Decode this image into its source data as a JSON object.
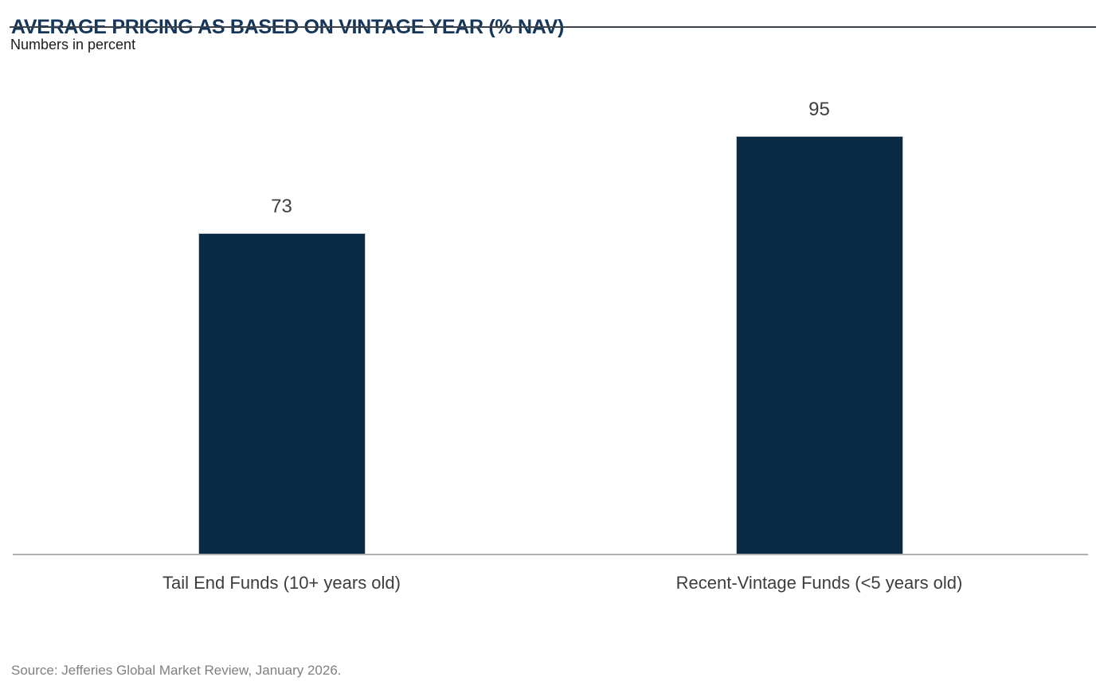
{
  "header": {
    "title": "AVERAGE PRICING AS BASED ON VINTAGE YEAR (% NAV)",
    "subtitle": "Numbers in percent"
  },
  "chart_data": {
    "type": "bar",
    "title": "AVERAGE PRICING AS BASED ON VINTAGE YEAR (% NAV)",
    "subtitle": "Numbers in percent",
    "categories": [
      "Tail End Funds (10+ years old)",
      "Recent-Vintage Funds (<5 years old)"
    ],
    "values": [
      73,
      95
    ],
    "value_labels": [
      "73",
      "95"
    ],
    "unit": "% NAV",
    "xlabel": "",
    "ylabel": "",
    "ylim": [
      0,
      100
    ],
    "grid": false,
    "legend": false,
    "bar_color": "#0b2a45",
    "bar_border_color": "#c9c9c9"
  },
  "footer": {
    "source": "Source: Jefferies Global Market Review, January 2026."
  },
  "colors": {
    "title_text": "#14365a",
    "title_rule": "#3a4149",
    "axis_line": "#b0b0b0",
    "value_label_text": "#3f3f3f",
    "category_label_text": "#3d3d3d",
    "subtitle_text": "#1c1c1c",
    "source_text": "#808080",
    "background": "#ffffff"
  }
}
